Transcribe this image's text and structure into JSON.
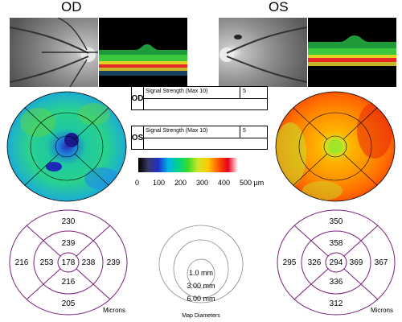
{
  "eyes": {
    "od": {
      "label": "OD"
    },
    "os": {
      "label": "OS"
    }
  },
  "signal_strength": {
    "od": {
      "eye": "OD",
      "label": "Signal Strength (Max 10)",
      "value": "5"
    },
    "os": {
      "eye": "OS",
      "label": "Signal Strength (Max 10)",
      "value": "5"
    }
  },
  "colorbar": {
    "ticks": [
      "0",
      "100",
      "200",
      "300",
      "400",
      "500 µm"
    ],
    "colors": [
      "#000000",
      "#3a3a6a",
      "#1e2ec8",
      "#00b4e6",
      "#00d28a",
      "#3cdc28",
      "#d2e628",
      "#ffc800",
      "#ff5a00",
      "#e6001e",
      "#ffffff"
    ]
  },
  "thickness_od": {
    "outer_superior": "230",
    "outer_nasal": "216",
    "outer_temporal": "239",
    "outer_inferior": "205",
    "inner_superior": "239",
    "inner_nasal": "253",
    "center": "178",
    "inner_temporal": "238",
    "inner_inferior": "216",
    "units": "Microns"
  },
  "thickness_os": {
    "outer_superior": "350",
    "outer_temporal": "295",
    "outer_nasal": "367",
    "outer_inferior": "312",
    "inner_superior": "358",
    "inner_temporal": "326",
    "center": "294",
    "inner_nasal": "369",
    "inner_inferior": "336",
    "units": "Microns"
  },
  "map_diameters": {
    "items": [
      "1.0 mm",
      "3.00 mm",
      "6.00 mm"
    ],
    "caption": "Map Diameters"
  },
  "colors": {
    "grid_line": "#7a1f7a",
    "od_map_base": "#1fc8b4",
    "os_map_base": "#ff7a00"
  }
}
